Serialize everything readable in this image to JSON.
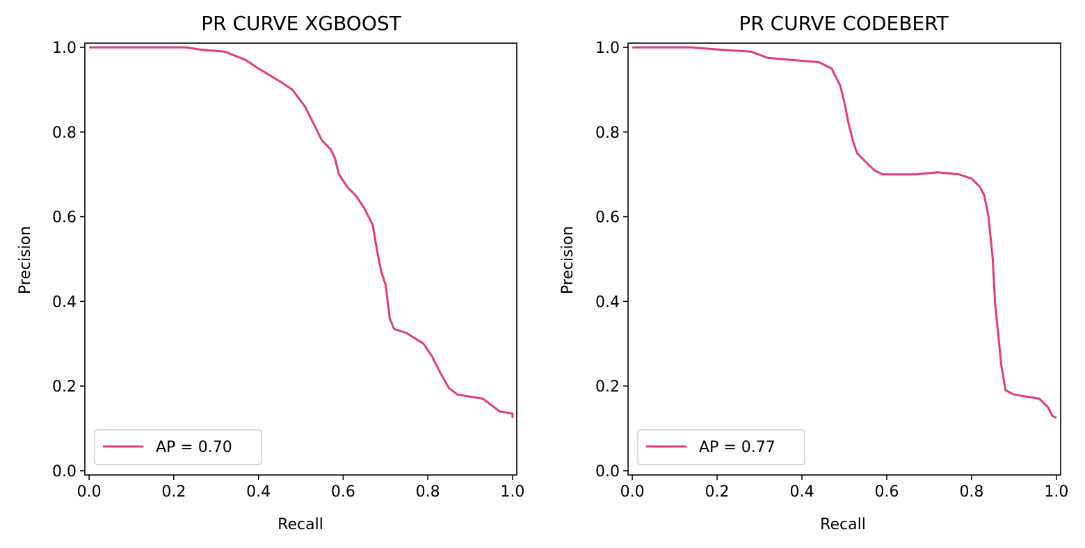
{
  "chart_data": [
    {
      "type": "line",
      "title": "PR CURVE XGBOOST",
      "xlabel": "Recall",
      "ylabel": "Precision",
      "xlim": [
        -0.01,
        1.01
      ],
      "ylim": [
        -0.01,
        1.01
      ],
      "xticks": [
        "0.0",
        "0.2",
        "0.4",
        "0.6",
        "0.8",
        "1.0"
      ],
      "yticks": [
        "0.0",
        "0.2",
        "0.4",
        "0.6",
        "0.8",
        "1.0"
      ],
      "grid": false,
      "legend_position": "lower-left",
      "series": [
        {
          "name": "AP = 0.70",
          "color": "#e43d69",
          "x": [
            0.0,
            0.1,
            0.23,
            0.26,
            0.32,
            0.37,
            0.4,
            0.45,
            0.48,
            0.51,
            0.53,
            0.55,
            0.57,
            0.58,
            0.59,
            0.61,
            0.63,
            0.65,
            0.67,
            0.68,
            0.69,
            0.7,
            0.71,
            0.72,
            0.75,
            0.79,
            0.81,
            0.83,
            0.85,
            0.87,
            0.9,
            0.93,
            0.95,
            0.97,
            1.0,
            1.0
          ],
          "y": [
            1.0,
            1.0,
            1.0,
            0.995,
            0.99,
            0.97,
            0.95,
            0.92,
            0.9,
            0.86,
            0.82,
            0.78,
            0.76,
            0.74,
            0.7,
            0.67,
            0.65,
            0.62,
            0.58,
            0.52,
            0.47,
            0.44,
            0.36,
            0.335,
            0.325,
            0.3,
            0.27,
            0.23,
            0.195,
            0.18,
            0.175,
            0.17,
            0.155,
            0.14,
            0.135,
            0.125
          ]
        }
      ]
    },
    {
      "type": "line",
      "title": "PR CURVE CODEBERT",
      "xlabel": "Recall",
      "ylabel": "Precision",
      "xlim": [
        -0.01,
        1.01
      ],
      "ylim": [
        -0.01,
        1.01
      ],
      "xticks": [
        "0.0",
        "0.2",
        "0.4",
        "0.6",
        "0.8",
        "1.0"
      ],
      "yticks": [
        "0.0",
        "0.2",
        "0.4",
        "0.6",
        "0.8",
        "1.0"
      ],
      "grid": false,
      "legend_position": "lower-left",
      "series": [
        {
          "name": "AP = 0.77",
          "color": "#e43d69",
          "x": [
            0.0,
            0.14,
            0.2,
            0.28,
            0.32,
            0.38,
            0.44,
            0.47,
            0.49,
            0.5,
            0.51,
            0.52,
            0.53,
            0.55,
            0.57,
            0.59,
            0.62,
            0.67,
            0.72,
            0.77,
            0.8,
            0.82,
            0.83,
            0.84,
            0.85,
            0.855,
            0.86,
            0.865,
            0.87,
            0.875,
            0.88,
            0.9,
            0.96,
            0.98,
            0.99,
            1.0
          ],
          "y": [
            1.0,
            1.0,
            0.995,
            0.99,
            0.975,
            0.97,
            0.965,
            0.95,
            0.91,
            0.87,
            0.82,
            0.78,
            0.75,
            0.73,
            0.71,
            0.7,
            0.7,
            0.7,
            0.705,
            0.7,
            0.69,
            0.67,
            0.65,
            0.6,
            0.5,
            0.4,
            0.35,
            0.3,
            0.25,
            0.22,
            0.19,
            0.18,
            0.17,
            0.15,
            0.13,
            0.125
          ]
        }
      ]
    }
  ]
}
